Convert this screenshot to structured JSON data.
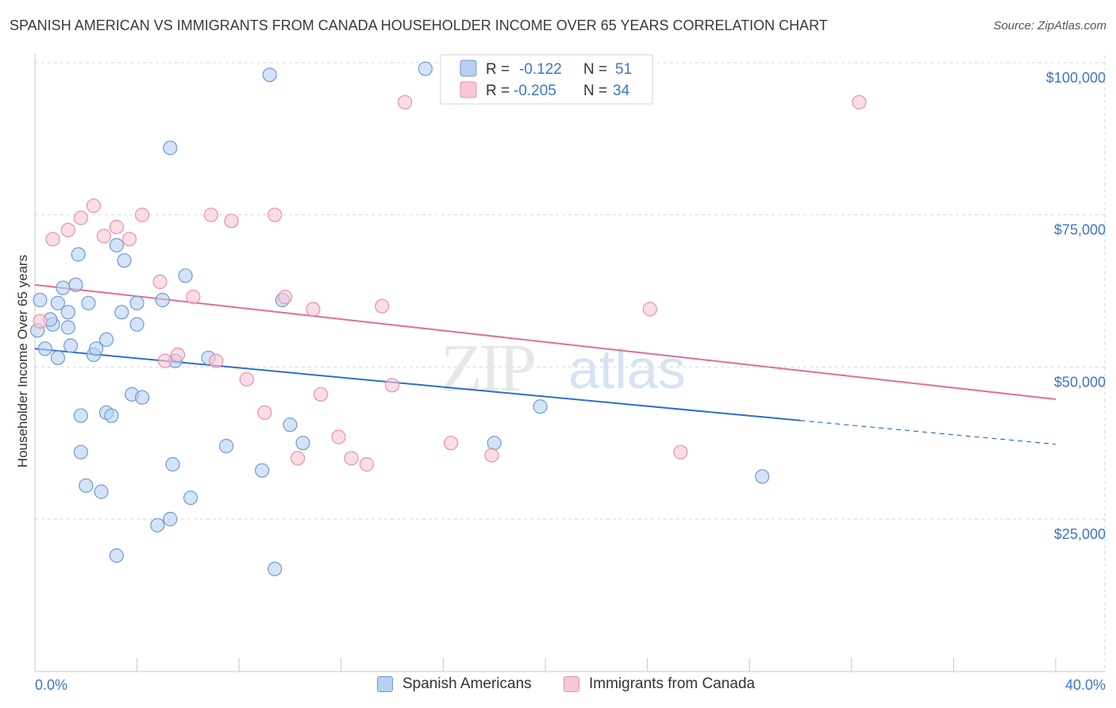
{
  "title": "SPANISH AMERICAN VS IMMIGRANTS FROM CANADA HOUSEHOLDER INCOME OVER 65 YEARS CORRELATION CHART",
  "source": "Source: ZipAtlas.com",
  "watermark": {
    "zip": "ZIP",
    "atlas": "atlas"
  },
  "colors": {
    "blue_fill": "#b8d0f0",
    "blue_stroke": "#6d9ad8",
    "blue_line": "#2e6fcc",
    "pink_fill": "#f8c6d6",
    "pink_stroke": "#e890ac",
    "pink_line": "#e26d96",
    "axis_text": "#3d76c9"
  },
  "legend": {
    "rows": [
      {
        "r_label": "R =",
        "r_value": "-0.122",
        "n_label": "N =",
        "n_value": "51"
      },
      {
        "r_label": "R =",
        "r_value": "-0.205",
        "n_label": "N =",
        "n_value": "34"
      }
    ]
  },
  "bottom_legend": {
    "series1": "Spanish Americans",
    "series2": "Immigrants from Canada"
  },
  "chart_data": {
    "type": "scatter",
    "xlabel": "",
    "ylabel": "Householder Income Over 65 years",
    "xlim": [
      0,
      40
    ],
    "ylim": [
      0,
      104000
    ],
    "x_tick_labels": [
      "0.0%",
      "40.0%"
    ],
    "y_tick_labels": [
      "$25,000",
      "$50,000",
      "$75,000",
      "$100,000"
    ],
    "y_ticks": [
      25000,
      50000,
      75000,
      100000
    ],
    "x_ticks": [
      0,
      4,
      8,
      12,
      16,
      20,
      24,
      28,
      32,
      36,
      40
    ],
    "grid": true,
    "series": [
      {
        "name": "Spanish Americans",
        "r": -0.122,
        "n": 51,
        "trend": {
          "x0": 0,
          "y0": 53000,
          "x1": 30,
          "y1": 41200,
          "dash_to_x": 40,
          "dash_to_y": 37300
        },
        "points": [
          [
            9.2,
            98000
          ],
          [
            15.3,
            99000
          ],
          [
            5.3,
            86000
          ],
          [
            0.2,
            61000
          ],
          [
            0.7,
            57000
          ],
          [
            0.4,
            53000
          ],
          [
            0.9,
            60500
          ],
          [
            0.9,
            51500
          ],
          [
            1.1,
            63000
          ],
          [
            1.3,
            59000
          ],
          [
            1.3,
            56500
          ],
          [
            1.4,
            53500
          ],
          [
            1.6,
            63500
          ],
          [
            1.7,
            68500
          ],
          [
            2.1,
            60500
          ],
          [
            2.3,
            52000
          ],
          [
            2.4,
            53000
          ],
          [
            2.8,
            54500
          ],
          [
            3.2,
            70000
          ],
          [
            3.4,
            59000
          ],
          [
            3.5,
            67500
          ],
          [
            3.8,
            45500
          ],
          [
            4.0,
            57000
          ],
          [
            4.0,
            60500
          ],
          [
            4.2,
            45000
          ],
          [
            5.0,
            61000
          ],
          [
            5.5,
            51000
          ],
          [
            5.9,
            65000
          ],
          [
            6.8,
            51500
          ],
          [
            1.8,
            36000
          ],
          [
            1.8,
            42000
          ],
          [
            2.0,
            30500
          ],
          [
            2.6,
            29500
          ],
          [
            2.8,
            42500
          ],
          [
            3.0,
            42000
          ],
          [
            3.2,
            19000
          ],
          [
            4.8,
            24000
          ],
          [
            5.3,
            25000
          ],
          [
            5.4,
            34000
          ],
          [
            6.1,
            28500
          ],
          [
            7.5,
            37000
          ],
          [
            8.9,
            33000
          ],
          [
            9.4,
            16800
          ],
          [
            10.0,
            40500
          ],
          [
            9.7,
            61000
          ],
          [
            10.5,
            37500
          ],
          [
            18.0,
            37500
          ],
          [
            19.8,
            43500
          ],
          [
            28.5,
            32000
          ],
          [
            0.1,
            56000
          ],
          [
            0.6,
            57800
          ]
        ]
      },
      {
        "name": "Immigrants from Canada",
        "r": -0.205,
        "n": 34,
        "trend": {
          "x0": 0,
          "y0": 63500,
          "x1": 40,
          "y1": 44700
        },
        "points": [
          [
            0.2,
            57500
          ],
          [
            0.7,
            71000
          ],
          [
            1.3,
            72500
          ],
          [
            1.8,
            74500
          ],
          [
            2.3,
            76500
          ],
          [
            2.7,
            71500
          ],
          [
            3.2,
            73000
          ],
          [
            3.7,
            71000
          ],
          [
            4.2,
            75000
          ],
          [
            4.9,
            64000
          ],
          [
            5.1,
            51000
          ],
          [
            5.6,
            52000
          ],
          [
            6.2,
            61500
          ],
          [
            6.9,
            75000
          ],
          [
            7.1,
            51000
          ],
          [
            7.7,
            74000
          ],
          [
            8.3,
            48000
          ],
          [
            9.0,
            42500
          ],
          [
            9.4,
            75000
          ],
          [
            9.8,
            61500
          ],
          [
            10.3,
            35000
          ],
          [
            10.9,
            59500
          ],
          [
            11.2,
            45500
          ],
          [
            11.9,
            38500
          ],
          [
            12.4,
            35000
          ],
          [
            13.0,
            34000
          ],
          [
            13.6,
            60000
          ],
          [
            14.0,
            47000
          ],
          [
            14.5,
            93500
          ],
          [
            16.3,
            37500
          ],
          [
            17.9,
            35500
          ],
          [
            24.1,
            59500
          ],
          [
            25.3,
            36000
          ],
          [
            32.3,
            93500
          ]
        ]
      }
    ]
  }
}
